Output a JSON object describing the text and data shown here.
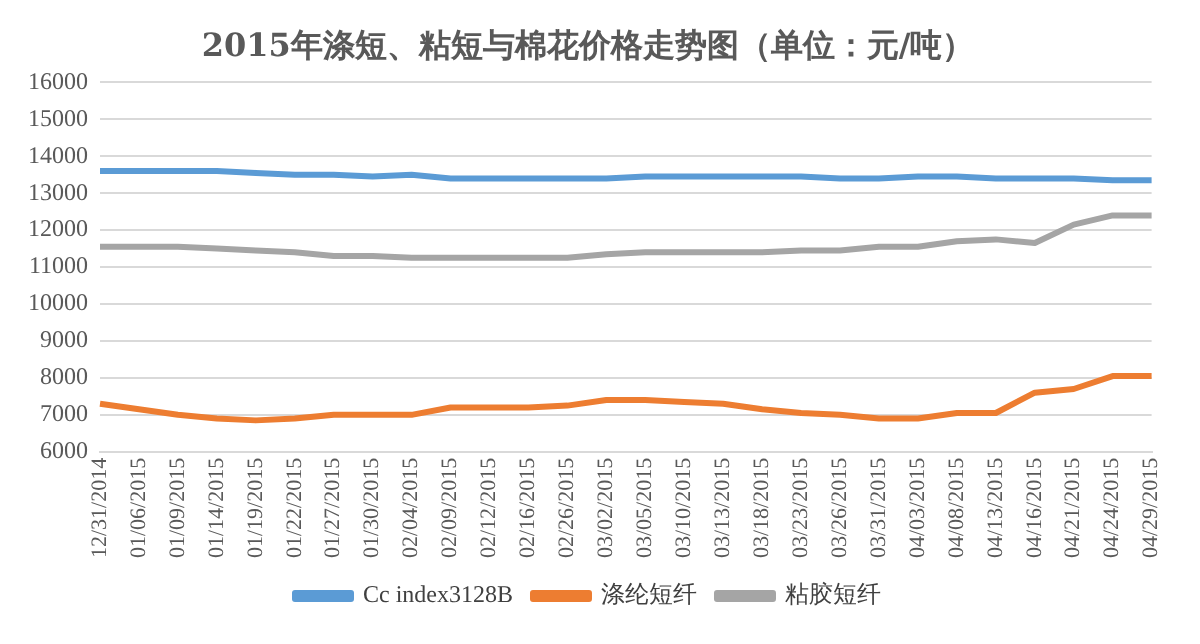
{
  "chart_data": {
    "type": "line",
    "title": "2015年涤短、粘短与棉花价格走势图（单位：元/吨）",
    "categories": [
      "12/31/2014",
      "01/06/2015",
      "01/09/2015",
      "01/14/2015",
      "01/19/2015",
      "01/22/2015",
      "01/27/2015",
      "01/30/2015",
      "02/04/2015",
      "02/09/2015",
      "02/12/2015",
      "02/16/2015",
      "02/26/2015",
      "03/02/2015",
      "03/05/2015",
      "03/10/2015",
      "03/13/2015",
      "03/18/2015",
      "03/23/2015",
      "03/26/2015",
      "03/31/2015",
      "04/03/2015",
      "04/08/2015",
      "04/13/2015",
      "04/16/2015",
      "04/21/2015",
      "04/24/2015",
      "04/29/2015"
    ],
    "series": [
      {
        "name": "Cc index3128B",
        "color": "#5b9bd5",
        "values": [
          13600,
          13600,
          13600,
          13600,
          13550,
          13500,
          13500,
          13450,
          13500,
          13400,
          13400,
          13400,
          13400,
          13400,
          13450,
          13450,
          13450,
          13450,
          13450,
          13400,
          13400,
          13450,
          13450,
          13400,
          13400,
          13400,
          13350,
          13350
        ]
      },
      {
        "name": "涤纶短纤",
        "color": "#ed7d31",
        "values": [
          7300,
          7150,
          7000,
          6900,
          6850,
          6900,
          7000,
          7000,
          7000,
          7200,
          7200,
          7200,
          7250,
          7400,
          7400,
          7350,
          7300,
          7150,
          7050,
          7000,
          6900,
          6900,
          7050,
          7050,
          7600,
          7700,
          8050,
          8050
        ]
      },
      {
        "name": "粘胶短纤",
        "color": "#a5a5a5",
        "values": [
          11550,
          11550,
          11550,
          11500,
          11450,
          11400,
          11300,
          11300,
          11250,
          11250,
          11250,
          11250,
          11250,
          11350,
          11400,
          11400,
          11400,
          11400,
          11450,
          11450,
          11550,
          11550,
          11700,
          11750,
          11650,
          12150,
          12400,
          12400
        ]
      }
    ],
    "ylim": [
      6000,
      16000
    ],
    "yticks": [
      6000,
      7000,
      8000,
      9000,
      10000,
      11000,
      12000,
      13000,
      14000,
      15000,
      16000
    ],
    "grid": "y",
    "legend": "bottom",
    "marker": "none",
    "line_style": "solid"
  }
}
